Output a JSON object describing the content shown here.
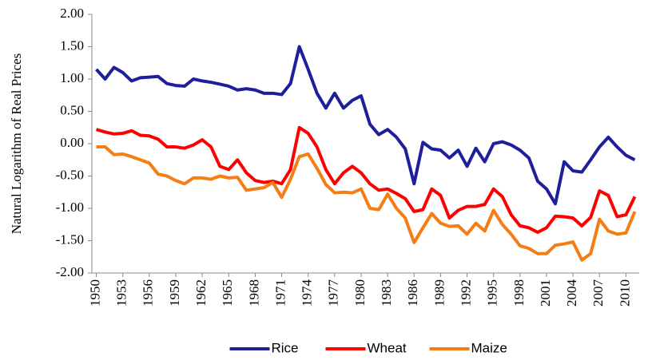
{
  "chart_data": {
    "type": "line",
    "y_label": "Natural Logarithm of Real Prices",
    "x": [
      1950,
      1951,
      1952,
      1953,
      1954,
      1955,
      1956,
      1957,
      1958,
      1959,
      1960,
      1961,
      1962,
      1963,
      1964,
      1965,
      1966,
      1967,
      1968,
      1969,
      1970,
      1971,
      1972,
      1973,
      1974,
      1975,
      1976,
      1977,
      1978,
      1979,
      1980,
      1981,
      1982,
      1983,
      1984,
      1985,
      1986,
      1987,
      1988,
      1989,
      1990,
      1991,
      1992,
      1993,
      1994,
      1995,
      1996,
      1997,
      1998,
      1999,
      2000,
      2001,
      2002,
      2003,
      2004,
      2005,
      2006,
      2007,
      2008,
      2009,
      2010,
      2011
    ],
    "xlim": [
      1949.5,
      2011.5
    ],
    "xticks": [
      1950,
      1953,
      1956,
      1959,
      1962,
      1965,
      1968,
      1971,
      1974,
      1977,
      1980,
      1983,
      1986,
      1989,
      1992,
      1995,
      1998,
      2001,
      2004,
      2007,
      2010
    ],
    "ylim": [
      -2,
      2
    ],
    "yticks": [
      {
        "value": 2,
        "label": "2.00"
      },
      {
        "value": 1.5,
        "label": "1.50"
      },
      {
        "value": 1,
        "label": "1.00"
      },
      {
        "value": 0.5,
        "label": "0.50"
      },
      {
        "value": 0,
        "label": "0.00"
      },
      {
        "value": -0.5,
        "label": "-0.50"
      },
      {
        "value": -1,
        "label": "-1.00"
      },
      {
        "value": -1.5,
        "label": "-1.50"
      },
      {
        "value": -2,
        "label": "-2.00"
      }
    ],
    "legend": "bottom",
    "series": [
      {
        "name": "Rice",
        "color": "#1f1f9c",
        "values": [
          1.15,
          1.0,
          1.18,
          1.1,
          0.97,
          1.02,
          1.03,
          1.04,
          0.93,
          0.9,
          0.89,
          1.0,
          0.97,
          0.95,
          0.92,
          0.89,
          0.83,
          0.85,
          0.83,
          0.78,
          0.78,
          0.76,
          0.93,
          1.5,
          1.15,
          0.78,
          0.55,
          0.78,
          0.55,
          0.67,
          0.74,
          0.3,
          0.14,
          0.22,
          0.1,
          -0.08,
          -0.62,
          0.02,
          -0.08,
          -0.1,
          -0.22,
          -0.1,
          -0.35,
          -0.07,
          -0.28,
          0.0,
          0.03,
          -0.02,
          -0.1,
          -0.22,
          -0.58,
          -0.7,
          -0.93,
          -0.28,
          -0.42,
          -0.44,
          -0.25,
          -0.05,
          0.1,
          -0.05,
          -0.18,
          -0.25
        ]
      },
      {
        "name": "Wheat",
        "color": "#ff0000",
        "values": [
          0.22,
          0.18,
          0.15,
          0.16,
          0.2,
          0.13,
          0.12,
          0.07,
          -0.05,
          -0.05,
          -0.07,
          -0.02,
          0.06,
          -0.05,
          -0.35,
          -0.4,
          -0.25,
          -0.45,
          -0.57,
          -0.6,
          -0.58,
          -0.62,
          -0.4,
          0.25,
          0.16,
          -0.05,
          -0.4,
          -0.62,
          -0.45,
          -0.35,
          -0.45,
          -0.62,
          -0.72,
          -0.7,
          -0.77,
          -0.85,
          -1.05,
          -1.02,
          -0.7,
          -0.8,
          -1.15,
          -1.03,
          -0.97,
          -0.97,
          -0.94,
          -0.7,
          -0.82,
          -1.1,
          -1.27,
          -1.3,
          -1.37,
          -1.3,
          -1.12,
          -1.13,
          -1.15,
          -1.27,
          -1.14,
          -0.73,
          -0.8,
          -1.13,
          -1.1,
          -0.82
        ]
      },
      {
        "name": "Maize",
        "color": "#f57d14",
        "values": [
          -0.05,
          -0.05,
          -0.17,
          -0.16,
          -0.2,
          -0.25,
          -0.3,
          -0.47,
          -0.5,
          -0.57,
          -0.62,
          -0.53,
          -0.53,
          -0.55,
          -0.5,
          -0.53,
          -0.52,
          -0.72,
          -0.7,
          -0.68,
          -0.6,
          -0.83,
          -0.55,
          -0.2,
          -0.16,
          -0.38,
          -0.63,
          -0.76,
          -0.75,
          -0.76,
          -0.7,
          -1.0,
          -1.02,
          -0.78,
          -1.0,
          -1.15,
          -1.53,
          -1.3,
          -1.08,
          -1.23,
          -1.28,
          -1.27,
          -1.4,
          -1.23,
          -1.35,
          -1.03,
          -1.25,
          -1.4,
          -1.58,
          -1.62,
          -1.7,
          -1.7,
          -1.57,
          -1.55,
          -1.52,
          -1.8,
          -1.7,
          -1.17,
          -1.35,
          -1.4,
          -1.38,
          -1.05
        ]
      }
    ]
  }
}
